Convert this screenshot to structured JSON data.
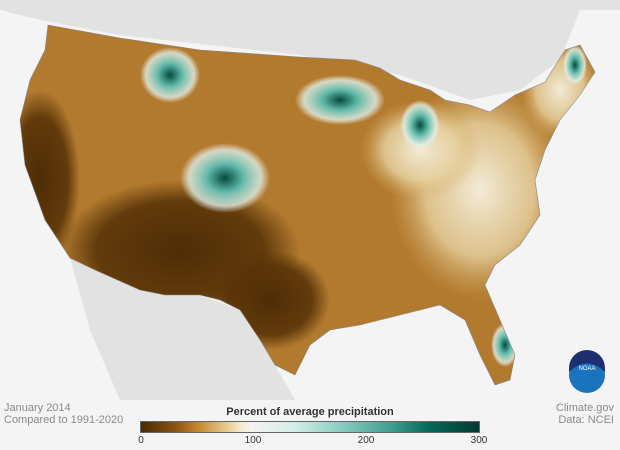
{
  "map": {
    "region": "Contiguous United States",
    "variable": "precipitation percent of average"
  },
  "caption": {
    "date": "January 2014",
    "baseline": "Compared to 1991-2020"
  },
  "credit": {
    "source": "Climate.gov",
    "data": "Data: NCEI"
  },
  "legend": {
    "title": "Percent of average precipitation",
    "ticks": [
      "0",
      "100",
      "200",
      "300"
    ],
    "colors": {
      "low": "#4a2a05",
      "mid": "#f3f3f1",
      "high": "#023a30"
    }
  },
  "logo": {
    "text": "NOAA"
  }
}
